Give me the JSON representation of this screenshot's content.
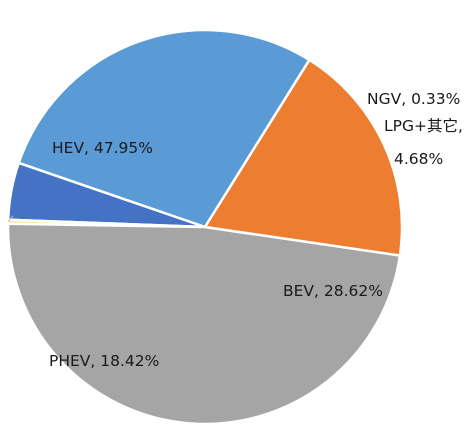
{
  "chart_data": {
    "type": "pie",
    "title": "",
    "start_angle_deg": 58,
    "direction": "counterclockwise",
    "slices": [
      {
        "name": "BEV",
        "value": 28.62,
        "color": "#5b9bd5",
        "label_lines": [
          "BEV, 28.62%"
        ]
      },
      {
        "name": "LPG+其它",
        "value": 4.68,
        "color": "#4472c4",
        "label_lines": [
          "LPG+其它,",
          "4.68%"
        ]
      },
      {
        "name": "NGV",
        "value": 0.33,
        "color": "#ffe699",
        "label_lines": [
          "NGV, 0.33%"
        ]
      },
      {
        "name": "HEV",
        "value": 47.95,
        "color": "#a5a5a5",
        "label_lines": [
          "HEV, 47.95%"
        ]
      },
      {
        "name": "PHEV",
        "value": 18.42,
        "color": "#ed7d31",
        "label_lines": [
          "PHEV, 18.42%"
        ]
      }
    ],
    "legend": "none"
  }
}
